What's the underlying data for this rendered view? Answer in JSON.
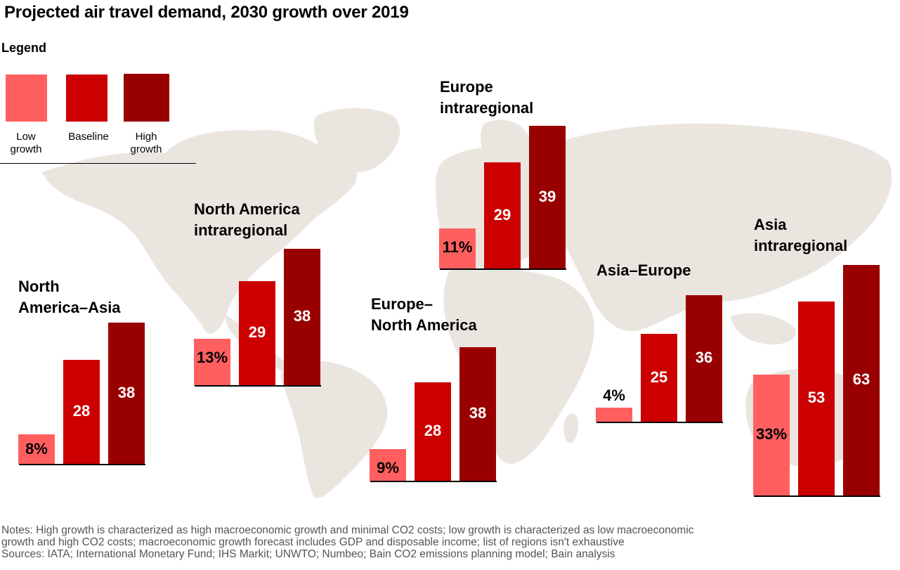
{
  "title": "Projected air travel demand, 2030 growth over 2019",
  "legend": {
    "title": "Legend",
    "items": [
      {
        "label_line1": "Low",
        "label_line2": "growth",
        "color": "#ff5f5f"
      },
      {
        "label_line1": "Baseline",
        "label_line2": "",
        "color": "#cc0000"
      },
      {
        "label_line1": "High",
        "label_line2": "growth",
        "color": "#990000"
      }
    ]
  },
  "chart_data": {
    "type": "bar",
    "series_names": [
      "Low growth",
      "Baseline",
      "High growth"
    ],
    "colors": [
      "#ff5f5f",
      "#cc0000",
      "#990000"
    ],
    "unit": "%",
    "groups": [
      {
        "id": "na-asia",
        "title_lines": [
          "North",
          "America–Asia"
        ],
        "labels": [
          "8%",
          "28",
          "38"
        ],
        "values": [
          8,
          28,
          38
        ]
      },
      {
        "id": "na-intra",
        "title_lines": [
          "North America",
          "intraregional"
        ],
        "labels": [
          "13%",
          "29",
          "38"
        ],
        "values": [
          13,
          29,
          38
        ]
      },
      {
        "id": "eu-na",
        "title_lines": [
          "Europe–",
          "North America"
        ],
        "labels": [
          "9%",
          "28",
          "38"
        ],
        "values": [
          9,
          28,
          38
        ]
      },
      {
        "id": "eu-intra",
        "title_lines": [
          "Europe",
          "intraregional"
        ],
        "labels": [
          "11%",
          "29",
          "39"
        ],
        "values": [
          11,
          29,
          39
        ]
      },
      {
        "id": "asia-eu",
        "title_lines": [
          "Asia–Europe"
        ],
        "labels": [
          "4%",
          "25",
          "36"
        ],
        "values": [
          4,
          25,
          36
        ]
      },
      {
        "id": "asia-intra",
        "title_lines": [
          "Asia",
          "intraregional"
        ],
        "labels": [
          "33%",
          "53",
          "63"
        ],
        "values": [
          33,
          53,
          63
        ]
      }
    ]
  },
  "notes": {
    "line1": "Notes: High growth is characterized as high macroeconomic growth and minimal CO2 costs; low growth is characterized as low macroeconomic",
    "line2": "growth and high CO2 costs; macroeconomic growth forecast includes GDP and disposable income; list of regions isn't exhaustive",
    "line3": "Sources: IATA; International Monetary Fund; IHS Markit; UNWTO; Numbeo; Bain CO2 emissions planning model; Bain analysis"
  },
  "background": {
    "map_color": "#ebe5e0"
  }
}
